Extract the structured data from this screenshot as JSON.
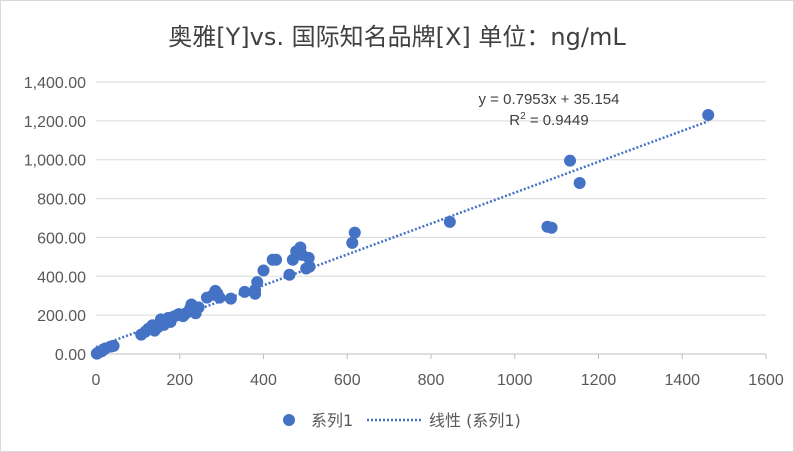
{
  "chart_data": {
    "type": "scatter",
    "title": "奥雅[Y]vs. 国际知名品牌[X]    单位：ng/mL",
    "xlabel": "",
    "ylabel": "",
    "xlim": [
      0,
      1600
    ],
    "ylim": [
      0,
      1400
    ],
    "x_ticks": [
      "0",
      "200",
      "400",
      "600",
      "800",
      "1000",
      "1200",
      "1400",
      "1600"
    ],
    "y_ticks": [
      "0.00",
      "200.00",
      "400.00",
      "600.00",
      "800.00",
      "1,000.00",
      "1,200.00",
      "1,400.00"
    ],
    "grid": "horizontal",
    "legend_position": "bottom",
    "series": [
      {
        "name": "系列1",
        "color": "#4472c4",
        "points": [
          [
            2,
            2
          ],
          [
            4,
            5
          ],
          [
            6,
            8
          ],
          [
            8,
            10
          ],
          [
            10,
            12
          ],
          [
            14,
            15
          ],
          [
            18,
            22
          ],
          [
            22,
            28
          ],
          [
            35,
            38
          ],
          [
            42,
            42
          ],
          [
            108,
            100
          ],
          [
            118,
            115
          ],
          [
            125,
            130
          ],
          [
            135,
            148
          ],
          [
            140,
            120
          ],
          [
            148,
            138
          ],
          [
            155,
            178
          ],
          [
            162,
            150
          ],
          [
            172,
            185
          ],
          [
            178,
            165
          ],
          [
            185,
            192
          ],
          [
            192,
            198
          ],
          [
            198,
            205
          ],
          [
            208,
            195
          ],
          [
            215,
            210
          ],
          [
            225,
            235
          ],
          [
            228,
            255
          ],
          [
            232,
            222
          ],
          [
            238,
            210
          ],
          [
            245,
            240
          ],
          [
            265,
            290
          ],
          [
            280,
            305
          ],
          [
            285,
            325
          ],
          [
            290,
            310
          ],
          [
            295,
            290
          ],
          [
            322,
            285
          ],
          [
            355,
            320
          ],
          [
            380,
            330
          ],
          [
            380,
            310
          ],
          [
            385,
            370
          ],
          [
            400,
            430
          ],
          [
            422,
            485
          ],
          [
            430,
            485
          ],
          [
            462,
            408
          ],
          [
            470,
            485
          ],
          [
            478,
            528
          ],
          [
            488,
            548
          ],
          [
            492,
            510
          ],
          [
            502,
            440
          ],
          [
            508,
            495
          ],
          [
            510,
            450
          ],
          [
            612,
            572
          ],
          [
            618,
            625
          ],
          [
            845,
            680
          ],
          [
            1078,
            655
          ],
          [
            1088,
            650
          ],
          [
            1132,
            995
          ],
          [
            1155,
            880
          ],
          [
            1462,
            1230
          ]
        ]
      }
    ],
    "trendline": {
      "name": "线性 (系列1)",
      "color": "#4472c4",
      "slope": 0.7953,
      "intercept": 35.154,
      "x_range": [
        0,
        1462
      ],
      "equation_text": "y = 0.7953x + 35.154",
      "r2_label": "R",
      "r2_superscript": "2",
      "r2_value_text": " = 0.9449"
    },
    "legend": {
      "series_label": "系列1",
      "trend_label": "线性 (系列1)"
    }
  }
}
